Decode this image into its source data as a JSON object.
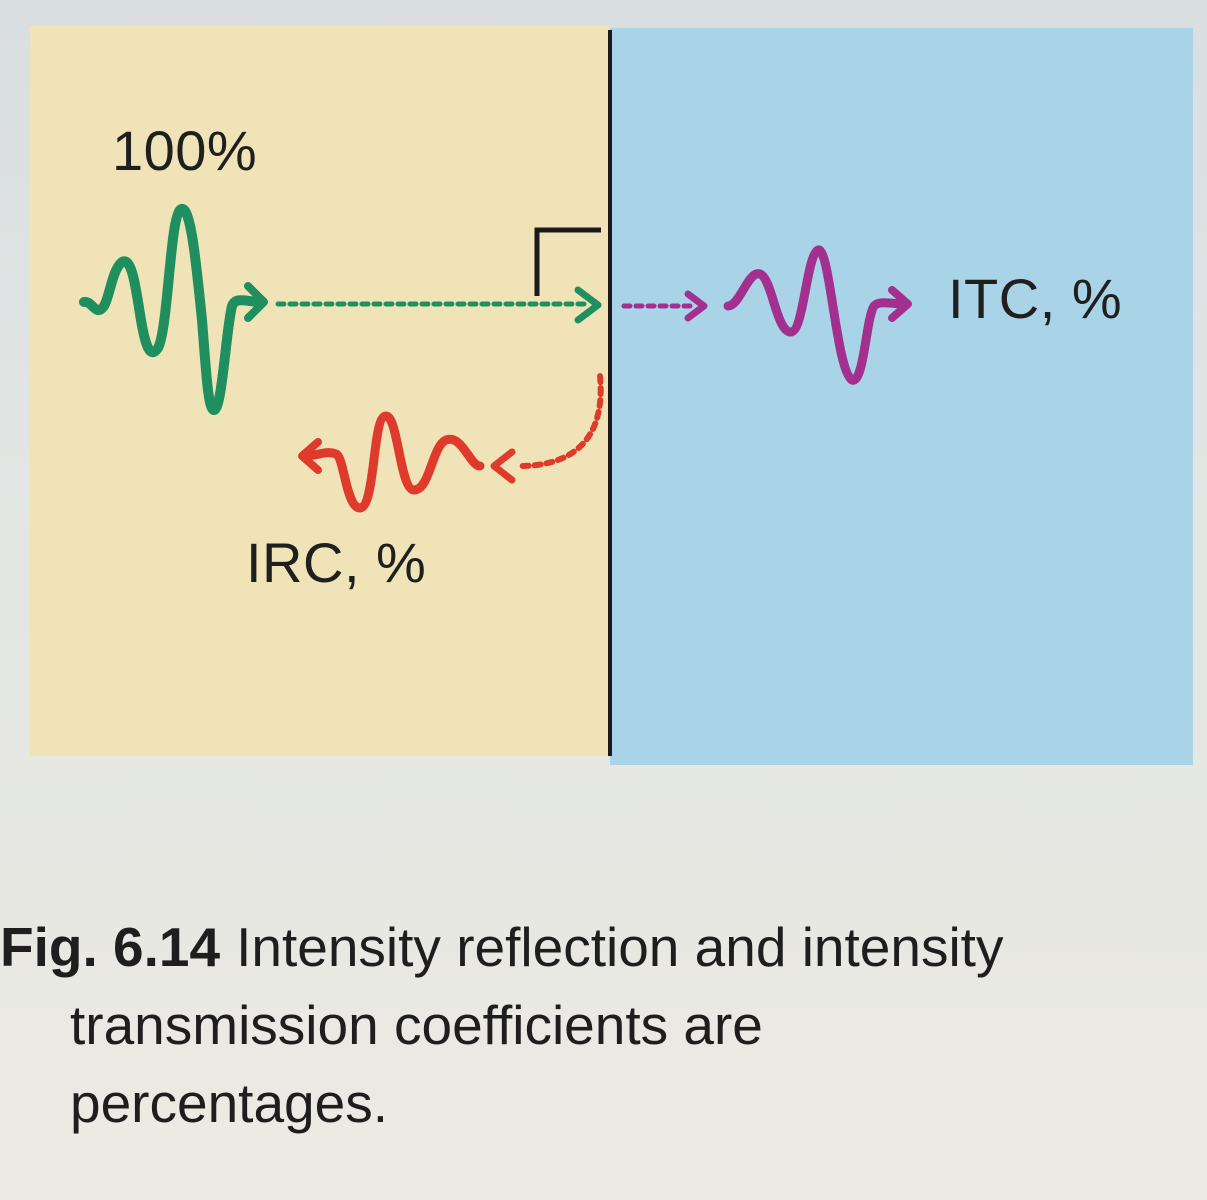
{
  "figure": {
    "incident_label": "100%",
    "transmitted_label": "ITC, %",
    "reflected_label": "IRC, %",
    "colors": {
      "medium_1": "#f0e3b8",
      "medium_2": "#a9d3e6",
      "incident_wave": "#1f8f5f",
      "transmitted_wave": "#a3308f",
      "reflected_wave": "#df3b2c",
      "boundary": "#1b1b1b"
    }
  },
  "caption": {
    "figure_number": "Fig. 6.14",
    "line_1": "Intensity reflection and intensity",
    "line_2": "transmission coefficients are",
    "line_3": "percentages."
  }
}
